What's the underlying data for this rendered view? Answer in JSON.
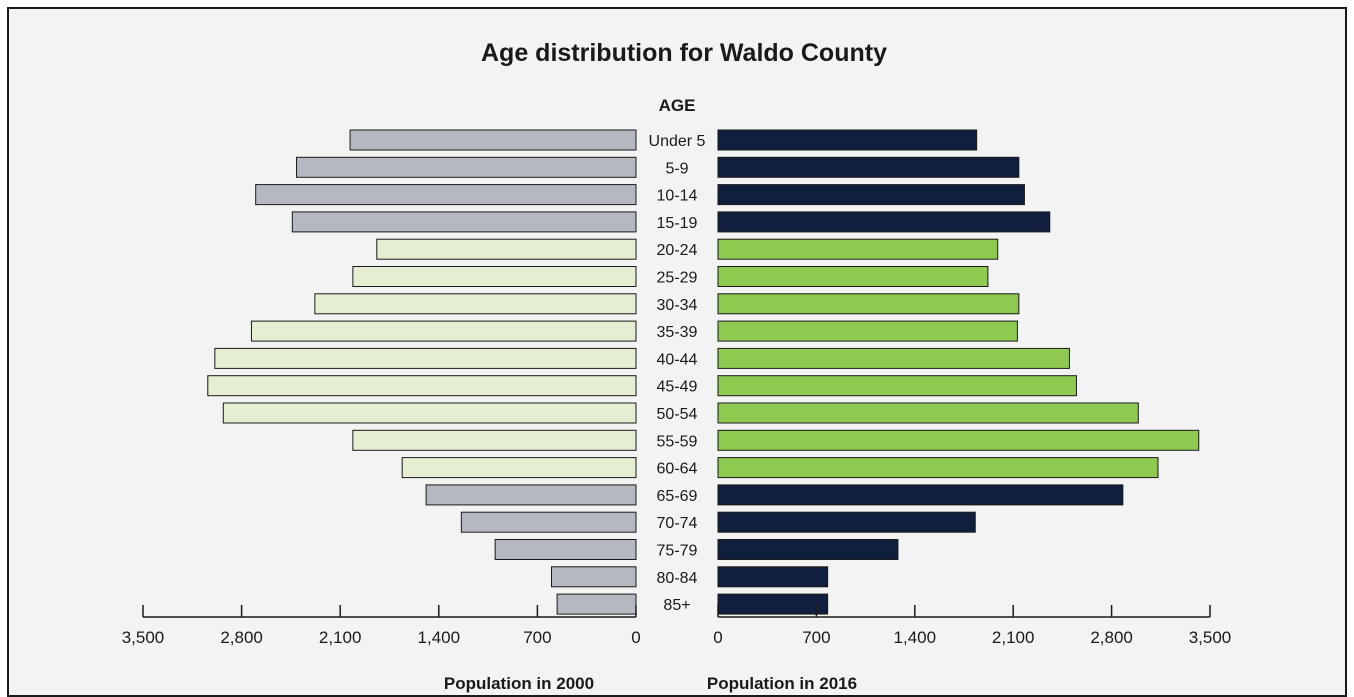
{
  "chart_data": {
    "type": "bar",
    "orientation": "horizontal-population-pyramid",
    "title": "Age distribution for Waldo County",
    "center_label": "AGE",
    "categories": [
      "Under 5",
      "5-9",
      "10-14",
      "15-19",
      "20-24",
      "25-29",
      "30-34",
      "35-39",
      "40-44",
      "45-49",
      "50-54",
      "55-59",
      "60-64",
      "65-69",
      "70-74",
      "75-79",
      "80-84",
      "85+"
    ],
    "series": [
      {
        "name": "Population in 2000",
        "side": "left",
        "values": [
          2030,
          2410,
          2700,
          2440,
          1840,
          2010,
          2280,
          2730,
          2990,
          3040,
          2930,
          2010,
          1660,
          1490,
          1240,
          1000,
          600,
          560
        ],
        "colors_by_category": [
          "#b3b8c1",
          "#b3b8c1",
          "#b3b8c1",
          "#b3b8c1",
          "#e3efd0",
          "#e3efd0",
          "#e3efd0",
          "#e3efd0",
          "#e3efd0",
          "#e3efd0",
          "#e3efd0",
          "#e3efd0",
          "#e3efd0",
          "#b3b8c1",
          "#b3b8c1",
          "#b3b8c1",
          "#b3b8c1",
          "#b3b8c1"
        ]
      },
      {
        "name": "Population in 2016",
        "side": "right",
        "values": [
          1840,
          2140,
          2180,
          2360,
          1990,
          1920,
          2140,
          2130,
          2500,
          2550,
          2990,
          3420,
          3130,
          2880,
          1830,
          1280,
          780,
          780
        ],
        "colors_by_category": [
          "#0f1f3d",
          "#0f1f3d",
          "#0f1f3d",
          "#0f1f3d",
          "#8fca50",
          "#8fca50",
          "#8fca50",
          "#8fca50",
          "#8fca50",
          "#8fca50",
          "#8fca50",
          "#8fca50",
          "#8fca50",
          "#0f1f3d",
          "#0f1f3d",
          "#0f1f3d",
          "#0f1f3d",
          "#0f1f3d"
        ]
      }
    ],
    "x_ticks": [
      0,
      700,
      1400,
      2100,
      2800,
      3500
    ],
    "x_tick_labels": [
      "0",
      "700",
      "1,400",
      "2,100",
      "2,800",
      "3,500"
    ],
    "xlim": [
      0,
      3500
    ],
    "xlabel_left": "Population in 2000",
    "xlabel_right": "Population in 2016",
    "grid": false,
    "legend": "none"
  },
  "colors": {
    "background": "#f3f3f3",
    "border": "#1a1a1a",
    "text": "#1a1a1a",
    "bar_outline": "#1a1a1a"
  }
}
